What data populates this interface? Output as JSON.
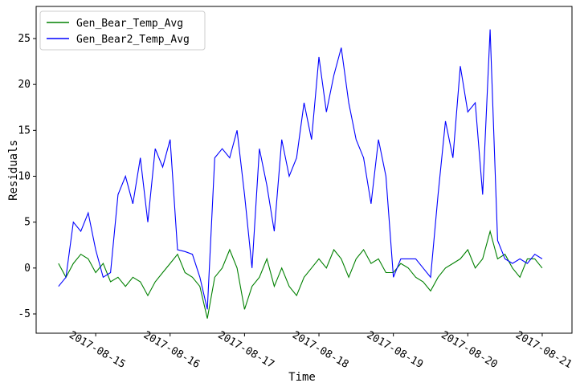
{
  "chart_data": {
    "type": "line",
    "xlabel": "Time",
    "ylabel": "Residuals",
    "legend": "upper left",
    "grid": false,
    "x": [
      "2017-08-14T12:00",
      "2017-08-14T14:24",
      "2017-08-14T16:48",
      "2017-08-14T19:12",
      "2017-08-14T21:36",
      "2017-08-15T00:00",
      "2017-08-15T02:24",
      "2017-08-15T04:48",
      "2017-08-15T07:12",
      "2017-08-15T09:36",
      "2017-08-15T12:00",
      "2017-08-15T14:24",
      "2017-08-15T16:48",
      "2017-08-15T19:12",
      "2017-08-15T21:36",
      "2017-08-16T00:00",
      "2017-08-16T02:24",
      "2017-08-16T04:48",
      "2017-08-16T07:12",
      "2017-08-16T09:36",
      "2017-08-16T12:00",
      "2017-08-16T14:24",
      "2017-08-16T16:48",
      "2017-08-16T19:12",
      "2017-08-16T21:36",
      "2017-08-17T00:00",
      "2017-08-17T02:24",
      "2017-08-17T04:48",
      "2017-08-17T07:12",
      "2017-08-17T09:36",
      "2017-08-17T12:00",
      "2017-08-17T14:24",
      "2017-08-17T16:48",
      "2017-08-17T19:12",
      "2017-08-17T21:36",
      "2017-08-18T00:00",
      "2017-08-18T02:24",
      "2017-08-18T04:48",
      "2017-08-18T07:12",
      "2017-08-18T09:36",
      "2017-08-18T12:00",
      "2017-08-18T14:24",
      "2017-08-18T16:48",
      "2017-08-18T19:12",
      "2017-08-18T21:36",
      "2017-08-19T00:00",
      "2017-08-19T02:24",
      "2017-08-19T04:48",
      "2017-08-19T07:12",
      "2017-08-19T09:36",
      "2017-08-19T12:00",
      "2017-08-19T14:24",
      "2017-08-19T16:48",
      "2017-08-19T19:12",
      "2017-08-19T21:36",
      "2017-08-20T00:00",
      "2017-08-20T02:24",
      "2017-08-20T04:48",
      "2017-08-20T07:12",
      "2017-08-20T09:36",
      "2017-08-20T12:00",
      "2017-08-20T14:24",
      "2017-08-20T16:48",
      "2017-08-20T19:12",
      "2017-08-20T21:36",
      "2017-08-21T00:00"
    ],
    "series": [
      {
        "name": "Gen_Bear_Temp_Avg",
        "color": "#008000",
        "values": [
          0.5,
          -1,
          0.5,
          1.5,
          1,
          -0.5,
          0.5,
          -1.5,
          -1,
          -2,
          -1,
          -1.5,
          -3,
          -1.5,
          -0.5,
          0.5,
          1.5,
          -0.5,
          -1,
          -2,
          -5.5,
          -1,
          0,
          2,
          0,
          -4.5,
          -2,
          -1,
          1,
          -2,
          0,
          -2,
          -3,
          -1,
          0,
          1,
          0,
          2,
          1,
          -1,
          1,
          2,
          0.5,
          1,
          -0.5,
          -0.5,
          0.5,
          0,
          -1,
          -1.5,
          -2.5,
          -1,
          0,
          0.5,
          1,
          2,
          0,
          1,
          4,
          1,
          1.5,
          0,
          -1,
          1,
          1,
          0
        ]
      },
      {
        "name": "Gen_Bear2_Temp_Avg",
        "color": "#0000ff",
        "values": [
          -2,
          -1,
          5,
          4,
          6,
          2,
          -1,
          -0.5,
          8,
          10,
          7,
          12,
          5,
          13,
          11,
          14,
          2,
          1.8,
          1.5,
          -1,
          -4.5,
          12,
          13,
          12,
          15,
          8,
          0,
          13,
          9,
          4,
          14,
          10,
          12,
          18,
          14,
          23,
          17,
          21,
          24,
          18,
          14,
          12,
          7,
          14,
          10,
          -1,
          1,
          1,
          1,
          0,
          -1,
          8,
          16,
          12,
          22,
          17,
          18,
          8,
          26,
          3,
          1,
          0.5,
          1,
          0.5,
          1.5,
          1
        ]
      }
    ],
    "xlim": [
      "2017-08-14T04:48",
      "2017-08-21T09:36"
    ],
    "xticks": [
      "2017-08-15",
      "2017-08-16",
      "2017-08-17",
      "2017-08-18",
      "2017-08-19",
      "2017-08-20",
      "2017-08-21"
    ],
    "ylim": [
      -7.1,
      28.5
    ],
    "yticks": [
      -5,
      0,
      5,
      10,
      15,
      20,
      25
    ]
  }
}
